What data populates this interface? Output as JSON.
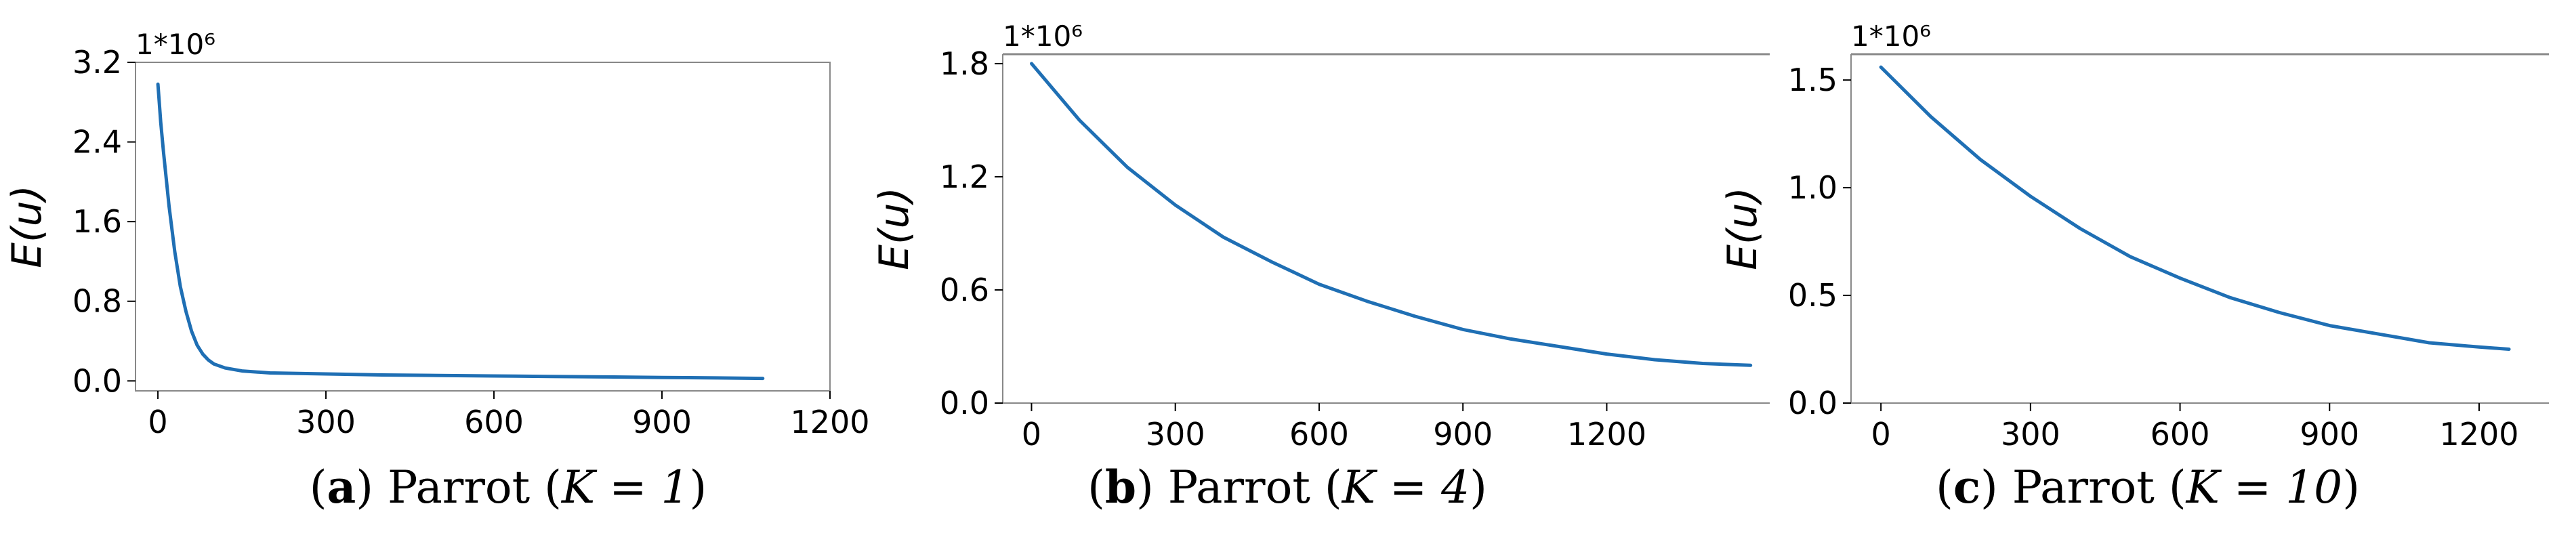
{
  "colors": {
    "line": "#1f6fb4",
    "axis": "#000000",
    "frame": "#888888"
  },
  "chart_data": [
    {
      "type": "line",
      "ylabel": "E(u)",
      "multiplier": "1*10⁶",
      "xlim": [
        -40,
        1200
      ],
      "ylim": [
        -0.1,
        3.2
      ],
      "xticks": [
        0,
        300,
        600,
        900,
        1200
      ],
      "xtick_labels": [
        "0",
        "300",
        "600",
        "900",
        "1200"
      ],
      "yticks": [
        0.0,
        0.8,
        1.6,
        2.4,
        3.2
      ],
      "ytick_labels": [
        "0.0",
        "0.8",
        "1.6",
        "2.4",
        "3.2"
      ],
      "series": [
        {
          "x": [
            0,
            5,
            10,
            20,
            30,
            40,
            50,
            60,
            70,
            80,
            90,
            100,
            120,
            150,
            200,
            300,
            400,
            500,
            600,
            700,
            800,
            900,
            1000,
            1080
          ],
          "y": [
            2.98,
            2.6,
            2.3,
            1.75,
            1.3,
            0.95,
            0.7,
            0.5,
            0.36,
            0.27,
            0.21,
            0.17,
            0.13,
            0.1,
            0.08,
            0.07,
            0.06,
            0.055,
            0.05,
            0.045,
            0.04,
            0.035,
            0.03,
            0.025
          ]
        }
      ],
      "caption": {
        "tag": "a",
        "text": "Parrot (",
        "math": "K = 1",
        "end": ")"
      }
    },
    {
      "type": "line",
      "ylabel": "E(u)",
      "multiplier": "1*10⁶",
      "xlim": [
        -60,
        1540
      ],
      "ylim": [
        0.0,
        1.85
      ],
      "xticks": [
        0,
        300,
        600,
        900,
        1200
      ],
      "xtick_labels": [
        "0",
        "300",
        "600",
        "900",
        "1200"
      ],
      "yticks": [
        0.0,
        0.6,
        1.2,
        1.8
      ],
      "ytick_labels": [
        "0.0",
        "0.6",
        "1.2",
        "1.8"
      ],
      "series": [
        {
          "x": [
            0,
            100,
            200,
            300,
            400,
            500,
            600,
            700,
            800,
            900,
            1000,
            1100,
            1200,
            1300,
            1400,
            1500
          ],
          "y": [
            1.8,
            1.5,
            1.25,
            1.05,
            0.88,
            0.75,
            0.63,
            0.54,
            0.46,
            0.39,
            0.34,
            0.3,
            0.26,
            0.23,
            0.21,
            0.2
          ]
        }
      ],
      "caption": {
        "tag": "b",
        "text": "Parrot (",
        "math": "K = 4",
        "end": ")"
      }
    },
    {
      "type": "line",
      "ylabel": "E(u)",
      "multiplier": "1*10⁶",
      "xlim": [
        -60,
        1340
      ],
      "ylim": [
        0.0,
        1.62
      ],
      "xticks": [
        0,
        300,
        600,
        900,
        1200
      ],
      "xtick_labels": [
        "0",
        "300",
        "600",
        "900",
        "1200"
      ],
      "yticks": [
        0.0,
        0.5,
        1.0,
        1.5
      ],
      "ytick_labels": [
        "0.0",
        "0.5",
        "1.0",
        "1.5"
      ],
      "series": [
        {
          "x": [
            0,
            100,
            200,
            300,
            400,
            500,
            600,
            700,
            800,
            900,
            1000,
            1100,
            1200,
            1260
          ],
          "y": [
            1.56,
            1.33,
            1.13,
            0.96,
            0.81,
            0.68,
            0.58,
            0.49,
            0.42,
            0.36,
            0.32,
            0.28,
            0.26,
            0.25
          ]
        }
      ],
      "caption": {
        "tag": "c",
        "text": "Parrot (",
        "math": "K = 10",
        "end": ")"
      }
    }
  ]
}
